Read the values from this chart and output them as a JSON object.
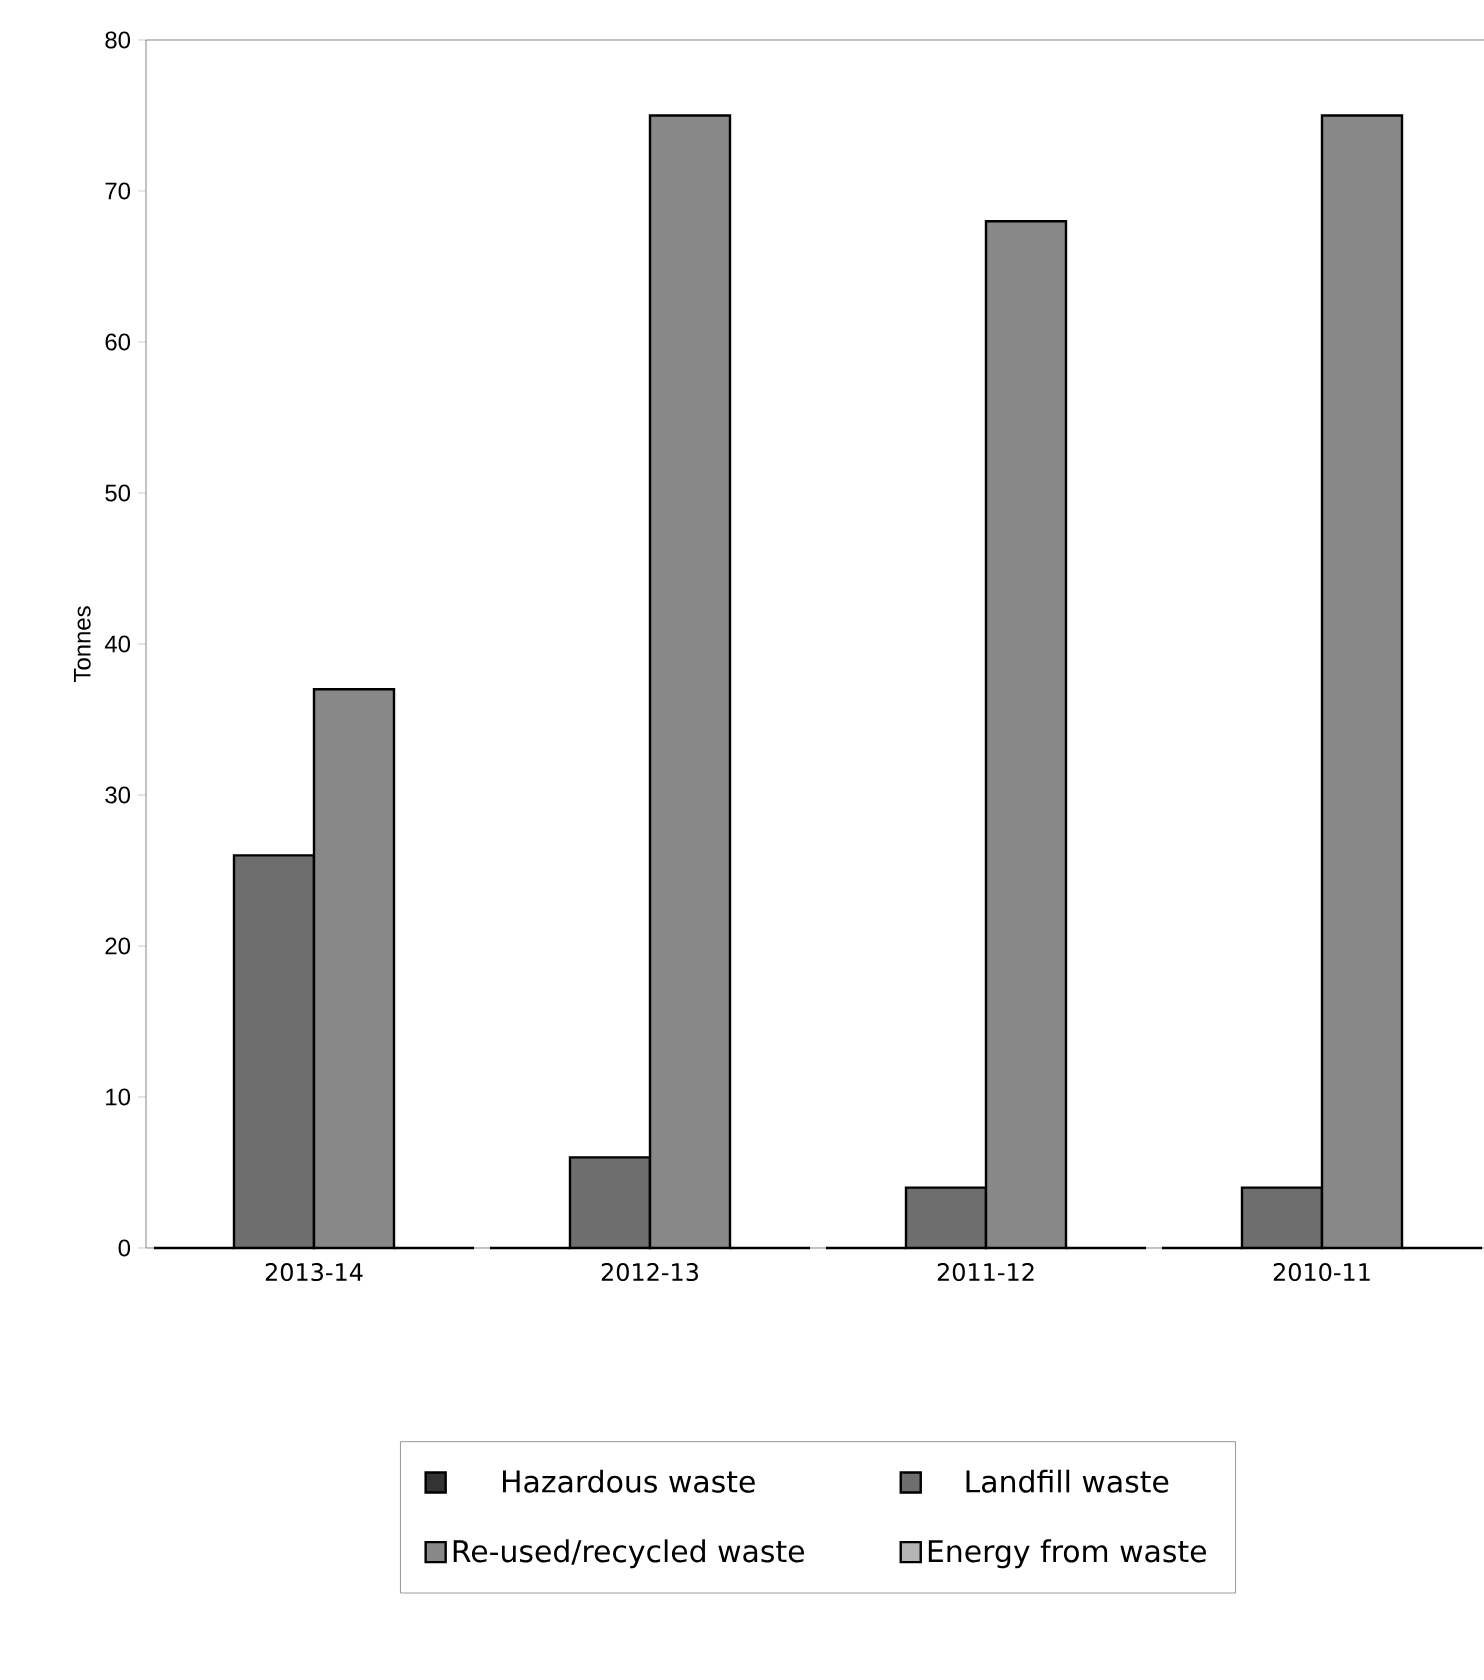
{
  "chart_data": {
    "type": "bar",
    "ylabel": "Tonnes",
    "categories": [
      "2013-14",
      "2012-13",
      "2011-12",
      "2010-11"
    ],
    "series": [
      {
        "name": "Hazardous waste",
        "color": "#333333",
        "values": [
          0,
          0,
          0,
          0
        ]
      },
      {
        "name": "Landfill waste",
        "color": "#6e6e6e",
        "values": [
          26,
          6,
          4,
          4
        ]
      },
      {
        "name": "Re-used/recycled waste",
        "color": "#888888",
        "values": [
          37,
          75,
          68,
          75
        ]
      },
      {
        "name": "Energy from waste",
        "color": "#b4b4b4",
        "values": [
          0,
          0,
          0,
          0
        ]
      }
    ],
    "ylim": [
      0,
      80
    ],
    "yticks": [
      0,
      10,
      20,
      30,
      40,
      50,
      60,
      70,
      80
    ],
    "legend": "bottom"
  }
}
